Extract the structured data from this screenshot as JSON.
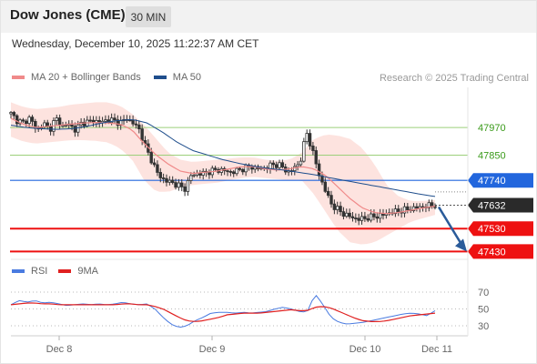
{
  "header": {
    "title": "Dow Jones (CME)",
    "timeframe": "30 MIN",
    "datetime": "Wednesday, December 10, 2025 11:22:37 AM CET"
  },
  "credit": "Research © 2025 Trading Central",
  "colors": {
    "bollinger": "#f08a8a",
    "ma50": "#1f4e8c",
    "support": "#ee1111",
    "resistance_line": "#9ccf7a",
    "resistance_text": "#3a9a1a",
    "pivot": "#2266dd",
    "last_price": "#2a2a2a",
    "rsi": "#4a7be0",
    "rsi_ma": "#e02020",
    "forecast_arrow": "#2a5b9a"
  },
  "legend": {
    "main": [
      {
        "label": "MA 20 + Bollinger Bands",
        "color": "#f08a8a"
      },
      {
        "label": "MA 50",
        "color": "#1f4e8c"
      }
    ],
    "rsi": [
      {
        "label": "RSI",
        "color": "#4a7be0"
      },
      {
        "label": "9MA",
        "color": "#e02020"
      }
    ]
  },
  "chart_data": [
    {
      "type": "candlestick",
      "title": "Dow Jones (CME)",
      "timeframe": "30 MIN",
      "x_tick_labels": [
        "Dec 8",
        "Dec 9",
        "Dec 10",
        "Dec 11"
      ],
      "price_range": [
        47400,
        48145
      ],
      "levels": [
        {
          "value": 47970,
          "role": "resistance",
          "label": "47970"
        },
        {
          "value": 47850,
          "role": "resistance",
          "label": "47850"
        },
        {
          "value": 47740,
          "role": "pivot",
          "label": "47740"
        },
        {
          "value": 47632,
          "role": "last",
          "label": "47632"
        },
        {
          "value": 47530,
          "role": "support",
          "label": "47530"
        },
        {
          "value": 47430,
          "role": "support",
          "label": "47430"
        }
      ],
      "forecast": {
        "from": 47632,
        "to": 47430,
        "direction": "down"
      },
      "close_path": [
        48030,
        48000,
        47990,
        48015,
        47955,
        47990,
        47960,
        48010,
        47975,
        47985,
        47960,
        47990,
        47995,
        48000,
        47990,
        48005,
        48000,
        47990,
        48010,
        47990,
        47960,
        47880,
        47820,
        47760,
        47740,
        47730,
        47720,
        47700,
        47760,
        47770,
        47770,
        47780,
        47785,
        47785,
        47775,
        47780,
        47790,
        47800,
        47795,
        47790,
        47800,
        47810,
        47805,
        47775,
        47790,
        47820,
        47950,
        47860,
        47760,
        47690,
        47630,
        47610,
        47590,
        47580,
        47570,
        47575,
        47580,
        47585,
        47590,
        47600,
        47605,
        47610,
        47615,
        47620,
        47625,
        47630,
        47632
      ],
      "ma20_path": [
        48010,
        47985,
        47970,
        47975,
        47980,
        47985,
        47990,
        47992,
        47990,
        47985,
        47960,
        47900,
        47850,
        47810,
        47780,
        47770,
        47775,
        47780,
        47790,
        47800,
        47800,
        47790,
        47785,
        47790,
        47800,
        47790,
        47760,
        47710,
        47660,
        47620,
        47600,
        47595,
        47600,
        47610,
        47620,
        47628
      ],
      "bollinger_upper_path": [
        48080,
        48060,
        48050,
        48055,
        48060,
        48070,
        48075,
        48080,
        48080,
        48065,
        48030,
        47980,
        47920,
        47860,
        47830,
        47820,
        47825,
        47830,
        47835,
        47840,
        47840,
        47830,
        47825,
        47830,
        47860,
        47920,
        47940,
        47935,
        47920,
        47880,
        47810,
        47720,
        47670,
        47650,
        47650,
        47655
      ],
      "bollinger_lower_path": [
        47930,
        47910,
        47900,
        47905,
        47910,
        47915,
        47915,
        47912,
        47905,
        47880,
        47830,
        47740,
        47690,
        47690,
        47710,
        47720,
        47725,
        47730,
        47740,
        47750,
        47755,
        47750,
        47745,
        47740,
        47740,
        47680,
        47600,
        47520,
        47470,
        47460,
        47470,
        47500,
        47530,
        47560,
        47575,
        47590
      ],
      "ma50_path": [
        47980,
        47970,
        47965,
        47962,
        47965,
        47975,
        47990,
        48000,
        48005,
        47990,
        47950,
        47905,
        47870,
        47850,
        47830,
        47815,
        47802,
        47792,
        47785,
        47775,
        47765,
        47752,
        47740,
        47728,
        47716,
        47704,
        47692,
        47680,
        47670
      ],
      "rsi": {
        "y_ticks": [
          70,
          50,
          30
        ],
        "range": [
          20,
          80
        ],
        "rsi_path": [
          55,
          60,
          58,
          60,
          57,
          58,
          56,
          54,
          55,
          56,
          55,
          56,
          55,
          56,
          58,
          56,
          55,
          56,
          50,
          40,
          32,
          28,
          30,
          36,
          40,
          45,
          46,
          46,
          45,
          46,
          45,
          46,
          47,
          50,
          52,
          50,
          47,
          46,
          68,
          55,
          40,
          34,
          32,
          33,
          34,
          36,
          38,
          40,
          42,
          44,
          45,
          44,
          42,
          48
        ],
        "ma9_path": [
          55,
          56,
          57,
          57,
          56,
          56,
          55,
          55,
          55,
          55,
          55,
          55,
          55,
          55,
          56,
          56,
          55,
          55,
          53,
          50,
          45,
          40,
          36,
          35,
          36,
          38,
          40,
          43,
          44,
          45,
          45,
          45,
          46,
          47,
          48,
          49,
          48,
          48,
          52,
          53,
          51,
          47,
          43,
          39,
          36,
          35,
          35,
          36,
          38,
          40,
          42,
          43,
          44,
          45
        ]
      }
    }
  ]
}
